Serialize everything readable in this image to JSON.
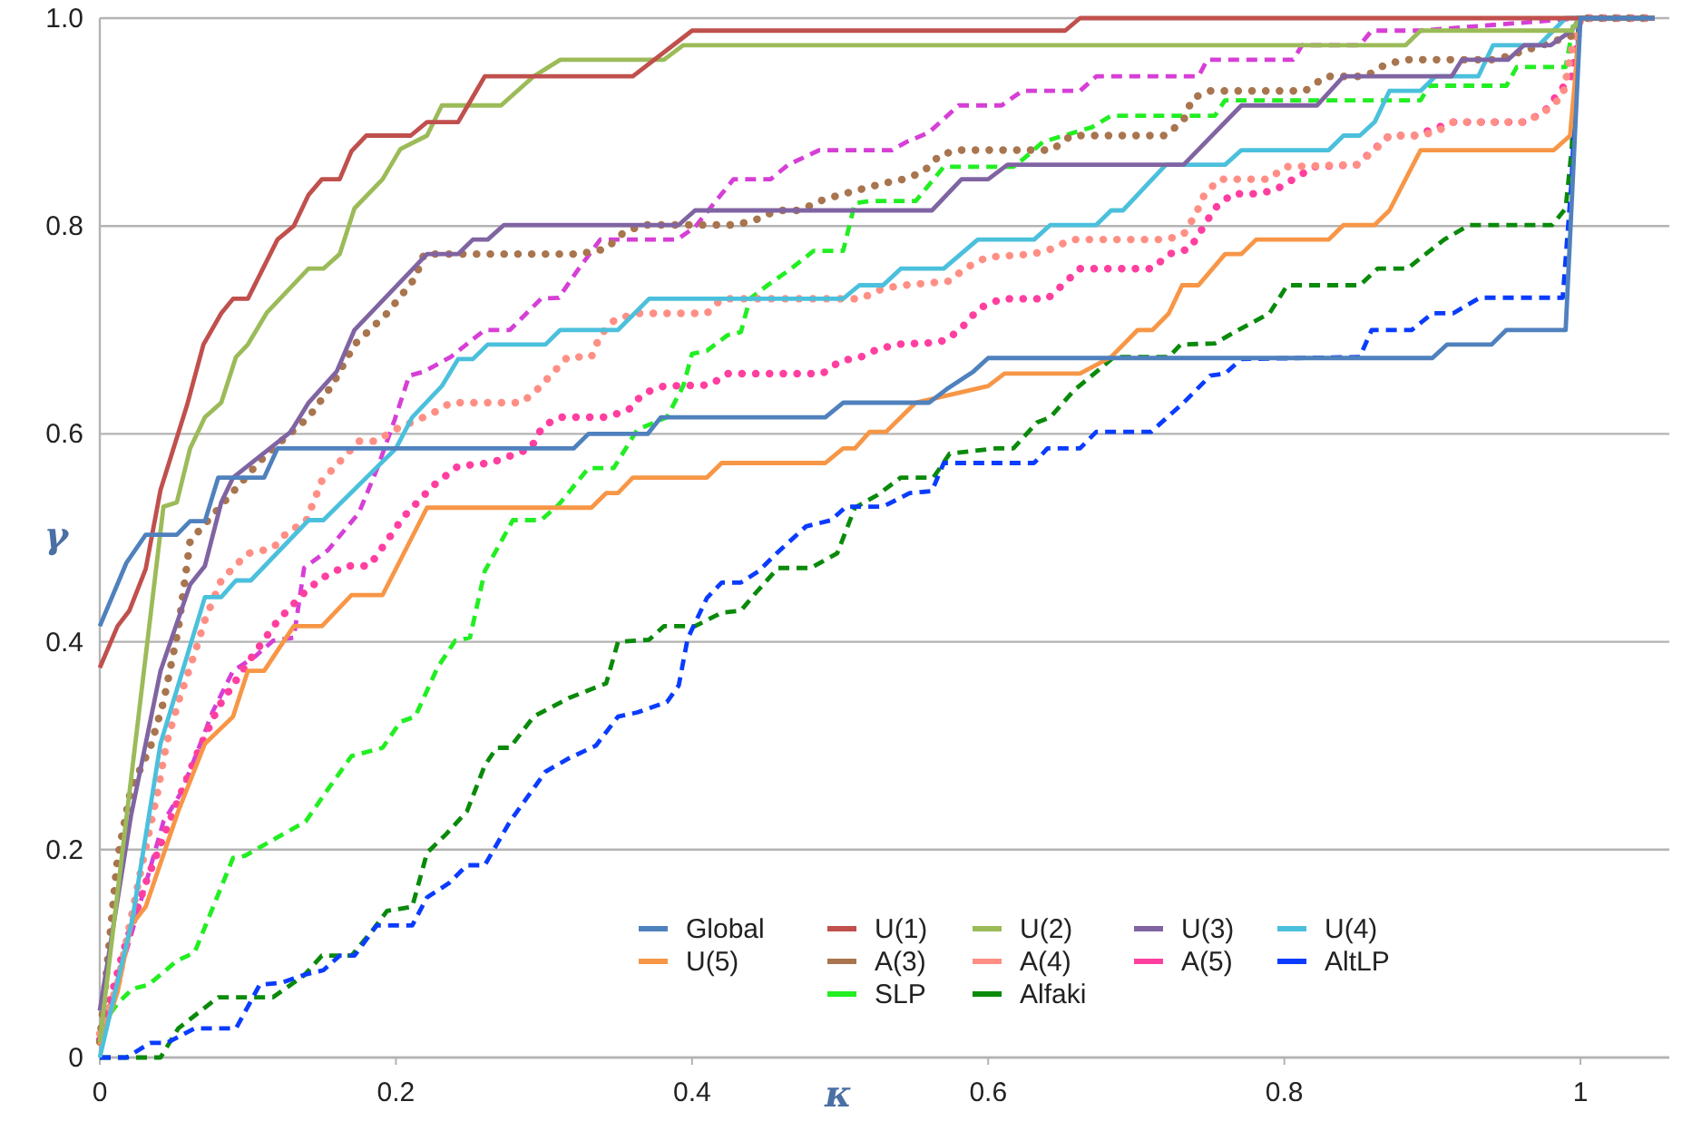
{
  "chart_data": {
    "type": "line",
    "xlabel": "κ",
    "ylabel": "γ",
    "xlim": [
      0,
      1.06
    ],
    "xticks": [
      0,
      0.2,
      0.4,
      0.6,
      0.8,
      1
    ],
    "ylim": [
      0,
      1
    ],
    "yticks": [
      0,
      0.2,
      0.4,
      0.6,
      0.8,
      {
        "value": 1,
        "label": "1.0"
      }
    ],
    "grid": "y",
    "legend": "bottom",
    "marker": "none",
    "series": [
      {
        "name": "Global",
        "color": "#4f81bd",
        "line_style": "solid",
        "x": [
          0,
          0.018,
          0.031,
          0.052,
          0.061,
          0.071,
          0.08,
          0.111,
          0.12,
          0.32,
          0.33,
          0.37,
          0.379,
          0.49,
          0.502,
          0.56,
          0.572,
          0.59,
          0.6,
          0.9,
          0.91,
          0.94,
          0.95,
          0.99,
          1.0,
          1.05
        ],
        "values": [
          0.415,
          0.476,
          0.503,
          0.503,
          0.516,
          0.516,
          0.558,
          0.558,
          0.586,
          0.586,
          0.6,
          0.6,
          0.616,
          0.616,
          0.63,
          0.63,
          0.643,
          0.66,
          0.673,
          0.673,
          0.686,
          0.686,
          0.7,
          0.7,
          1.0,
          1.0
        ]
      },
      {
        "name": "U(1)",
        "color": "#c0504d",
        "line_style": "solid",
        "x": [
          0,
          0.012,
          0.02,
          0.031,
          0.041,
          0.059,
          0.07,
          0.082,
          0.09,
          0.1,
          0.12,
          0.131,
          0.141,
          0.15,
          0.162,
          0.17,
          0.18,
          0.21,
          0.221,
          0.242,
          0.26,
          0.36,
          0.4,
          0.652,
          0.662,
          1.05
        ],
        "values": [
          0.375,
          0.415,
          0.43,
          0.47,
          0.546,
          0.628,
          0.686,
          0.716,
          0.73,
          0.73,
          0.787,
          0.8,
          0.83,
          0.845,
          0.845,
          0.872,
          0.887,
          0.887,
          0.9,
          0.9,
          0.944,
          0.944,
          0.988,
          0.988,
          1.0,
          1.0
        ]
      },
      {
        "name": "U(2)",
        "color": "#9bbb59",
        "line_style": "solid",
        "x": [
          0,
          0.043,
          0.052,
          0.061,
          0.071,
          0.082,
          0.092,
          0.1,
          0.113,
          0.141,
          0.151,
          0.162,
          0.172,
          0.191,
          0.203,
          0.221,
          0.231,
          0.271,
          0.293,
          0.311,
          0.381,
          0.394,
          0.882,
          0.892,
          0.994,
          1.0,
          1.05
        ],
        "values": [
          0.015,
          0.53,
          0.534,
          0.586,
          0.616,
          0.63,
          0.674,
          0.686,
          0.717,
          0.759,
          0.759,
          0.773,
          0.817,
          0.845,
          0.874,
          0.887,
          0.916,
          0.916,
          0.944,
          0.96,
          0.96,
          0.974,
          0.974,
          0.988,
          0.988,
          1.0,
          1.0
        ]
      },
      {
        "name": "U(3)",
        "color": "#8064a2",
        "line_style": "solid",
        "x": [
          0,
          0.021,
          0.041,
          0.061,
          0.071,
          0.082,
          0.09,
          0.129,
          0.141,
          0.16,
          0.172,
          0.221,
          0.242,
          0.252,
          0.262,
          0.273,
          0.391,
          0.402,
          0.562,
          0.582,
          0.6,
          0.613,
          0.732,
          0.771,
          0.822,
          0.84,
          0.913,
          0.92,
          0.951,
          0.962,
          0.98,
          0.994,
          1.0,
          1.05
        ],
        "values": [
          0.045,
          0.232,
          0.372,
          0.455,
          0.473,
          0.534,
          0.558,
          0.602,
          0.63,
          0.66,
          0.7,
          0.773,
          0.773,
          0.787,
          0.787,
          0.801,
          0.801,
          0.815,
          0.815,
          0.845,
          0.845,
          0.859,
          0.859,
          0.916,
          0.916,
          0.944,
          0.944,
          0.96,
          0.96,
          0.974,
          0.974,
          0.988,
          1.0,
          1.0
        ]
      },
      {
        "name": "U(4)",
        "color": "#4bc0dc",
        "line_style": "solid",
        "x": [
          0,
          0.022,
          0.041,
          0.071,
          0.082,
          0.092,
          0.102,
          0.141,
          0.151,
          0.2,
          0.211,
          0.231,
          0.242,
          0.252,
          0.262,
          0.301,
          0.311,
          0.35,
          0.371,
          0.502,
          0.513,
          0.529,
          0.541,
          0.57,
          0.593,
          0.631,
          0.642,
          0.673,
          0.683,
          0.691,
          0.72,
          0.76,
          0.771,
          0.83,
          0.84,
          0.851,
          0.861,
          0.871,
          0.892,
          0.902,
          0.931,
          0.941,
          0.972,
          0.99,
          1.05
        ],
        "values": [
          0,
          0.133,
          0.302,
          0.443,
          0.443,
          0.459,
          0.459,
          0.517,
          0.517,
          0.586,
          0.616,
          0.646,
          0.672,
          0.672,
          0.686,
          0.686,
          0.7,
          0.7,
          0.73,
          0.73,
          0.743,
          0.743,
          0.759,
          0.759,
          0.787,
          0.787,
          0.801,
          0.801,
          0.815,
          0.815,
          0.859,
          0.859,
          0.873,
          0.873,
          0.887,
          0.887,
          0.9,
          0.93,
          0.93,
          0.944,
          0.944,
          0.974,
          0.974,
          1.0,
          1.0
        ]
      },
      {
        "name": "U(5)",
        "color": "#f79646",
        "line_style": "solid",
        "x": [
          0,
          0.012,
          0.021,
          0.031,
          0.053,
          0.071,
          0.09,
          0.1,
          0.111,
          0.131,
          0.15,
          0.17,
          0.191,
          0.221,
          0.332,
          0.342,
          0.35,
          0.36,
          0.41,
          0.42,
          0.49,
          0.502,
          0.51,
          0.52,
          0.531,
          0.551,
          0.6,
          0.611,
          0.662,
          0.683,
          0.701,
          0.711,
          0.722,
          0.731,
          0.742,
          0.76,
          0.771,
          0.781,
          0.83,
          0.84,
          0.861,
          0.871,
          0.892,
          0.982,
          0.993,
          1.0,
          1.05
        ],
        "values": [
          0.012,
          0.063,
          0.127,
          0.145,
          0.237,
          0.302,
          0.328,
          0.372,
          0.372,
          0.415,
          0.415,
          0.445,
          0.445,
          0.529,
          0.529,
          0.543,
          0.543,
          0.558,
          0.558,
          0.572,
          0.572,
          0.586,
          0.586,
          0.602,
          0.602,
          0.63,
          0.646,
          0.658,
          0.658,
          0.674,
          0.7,
          0.7,
          0.716,
          0.743,
          0.743,
          0.773,
          0.773,
          0.787,
          0.787,
          0.801,
          0.801,
          0.815,
          0.873,
          0.873,
          0.887,
          1.0,
          1.0
        ]
      },
      {
        "name": "A(3)",
        "color": "#a8754f",
        "line_style": "dotted",
        "x": [
          0,
          0.009,
          0.012,
          0.021,
          0.034,
          0.043,
          0.053,
          0.061,
          0.107,
          0.117,
          0.141,
          0.157,
          0.172,
          0.194,
          0.213,
          0.219,
          0.323,
          0.342,
          0.354,
          0.367,
          0.43,
          0.445,
          0.457,
          0.473,
          0.486,
          0.5,
          0.529,
          0.543,
          0.556,
          0.568,
          0.582,
          0.643,
          0.656,
          0.72,
          0.732,
          0.738,
          0.75,
          0.814,
          0.828,
          0.855,
          0.869,
          0.883,
          0.943,
          0.994,
          1.0,
          1.05
        ],
        "values": [
          0.015,
          0.148,
          0.192,
          0.258,
          0.298,
          0.342,
          0.412,
          0.497,
          0.572,
          0.586,
          0.616,
          0.647,
          0.686,
          0.716,
          0.75,
          0.773,
          0.773,
          0.778,
          0.794,
          0.801,
          0.801,
          0.807,
          0.815,
          0.815,
          0.824,
          0.83,
          0.841,
          0.845,
          0.852,
          0.869,
          0.873,
          0.873,
          0.887,
          0.887,
          0.902,
          0.923,
          0.93,
          0.93,
          0.944,
          0.944,
          0.956,
          0.96,
          0.96,
          0.983,
          1.0,
          1.0
        ]
      },
      {
        "name": "A(4)",
        "color": "#ff8f85",
        "line_style": "dotted",
        "x": [
          0,
          0.012,
          0.027,
          0.039,
          0.045,
          0.053,
          0.065,
          0.071,
          0.082,
          0.09,
          0.1,
          0.117,
          0.127,
          0.139,
          0.15,
          0.175,
          0.187,
          0.199,
          0.225,
          0.237,
          0.285,
          0.295,
          0.316,
          0.332,
          0.338,
          0.348,
          0.363,
          0.41,
          0.42,
          0.514,
          0.529,
          0.543,
          0.574,
          0.584,
          0.599,
          0.63,
          0.643,
          0.656,
          0.72,
          0.732,
          0.74,
          0.746,
          0.756,
          0.79,
          0.8,
          0.849,
          0.861,
          0.871,
          0.888,
          0.902,
          0.914,
          0.962,
          0.975,
          0.988,
          0.994,
          1.0,
          1.05
        ],
        "values": [
          0.023,
          0.07,
          0.175,
          0.255,
          0.302,
          0.342,
          0.393,
          0.421,
          0.459,
          0.471,
          0.485,
          0.49,
          0.506,
          0.515,
          0.555,
          0.593,
          0.593,
          0.604,
          0.62,
          0.63,
          0.63,
          0.642,
          0.674,
          0.674,
          0.695,
          0.71,
          0.716,
          0.716,
          0.73,
          0.73,
          0.74,
          0.743,
          0.747,
          0.759,
          0.77,
          0.773,
          0.778,
          0.787,
          0.787,
          0.792,
          0.811,
          0.83,
          0.845,
          0.845,
          0.857,
          0.859,
          0.873,
          0.887,
          0.887,
          0.89,
          0.9,
          0.9,
          0.909,
          0.925,
          0.969,
          1.0,
          1.0
        ]
      },
      {
        "name": "A(5)",
        "color": "#ff3fa0",
        "line_style": "dotted",
        "x": [
          0,
          0.015,
          0.031,
          0.047,
          0.065,
          0.08,
          0.1,
          0.12,
          0.14,
          0.151,
          0.166,
          0.182,
          0.194,
          0.205,
          0.225,
          0.242,
          0.264,
          0.291,
          0.299,
          0.31,
          0.342,
          0.357,
          0.367,
          0.381,
          0.412,
          0.424,
          0.488,
          0.5,
          0.514,
          0.526,
          0.543,
          0.557,
          0.572,
          0.584,
          0.594,
          0.609,
          0.64,
          0.65,
          0.662,
          0.695,
          0.711,
          0.722,
          0.736,
          0.744,
          0.753,
          0.765,
          0.779,
          0.793,
          0.806,
          0.82,
          0.849,
          0.871,
          0.888,
          0.914,
          0.962,
          0.975,
          0.994,
          1.0,
          1.05
        ],
        "values": [
          0.017,
          0.098,
          0.168,
          0.227,
          0.29,
          0.337,
          0.38,
          0.42,
          0.45,
          0.462,
          0.473,
          0.473,
          0.497,
          0.52,
          0.55,
          0.569,
          0.572,
          0.586,
          0.607,
          0.616,
          0.616,
          0.623,
          0.639,
          0.646,
          0.647,
          0.658,
          0.658,
          0.67,
          0.674,
          0.682,
          0.687,
          0.687,
          0.69,
          0.705,
          0.721,
          0.73,
          0.73,
          0.743,
          0.759,
          0.759,
          0.759,
          0.773,
          0.778,
          0.796,
          0.817,
          0.831,
          0.831,
          0.834,
          0.845,
          0.857,
          0.859,
          0.887,
          0.887,
          0.9,
          0.9,
          0.909,
          0.944,
          1.0,
          1.0
        ]
      },
      {
        "name": "AltLP",
        "color": "#0a3cff",
        "line_style": "dashed",
        "x": [
          0,
          0.018,
          0.034,
          0.045,
          0.064,
          0.092,
          0.108,
          0.123,
          0.139,
          0.151,
          0.162,
          0.172,
          0.187,
          0.211,
          0.221,
          0.236,
          0.248,
          0.26,
          0.277,
          0.301,
          0.317,
          0.335,
          0.35,
          0.363,
          0.383,
          0.391,
          0.397,
          0.41,
          0.42,
          0.433,
          0.445,
          0.457,
          0.477,
          0.494,
          0.504,
          0.529,
          0.547,
          0.562,
          0.57,
          0.631,
          0.64,
          0.662,
          0.673,
          0.71,
          0.732,
          0.75,
          0.76,
          0.771,
          0.851,
          0.859,
          0.886,
          0.9,
          0.914,
          0.932,
          0.988,
          0.994,
          0.999,
          1.05
        ],
        "values": [
          0,
          0,
          0.014,
          0.014,
          0.028,
          0.028,
          0.07,
          0.072,
          0.08,
          0.084,
          0.098,
          0.098,
          0.127,
          0.127,
          0.154,
          0.168,
          0.185,
          0.185,
          0.227,
          0.275,
          0.288,
          0.3,
          0.328,
          0.332,
          0.342,
          0.358,
          0.403,
          0.442,
          0.457,
          0.457,
          0.468,
          0.485,
          0.511,
          0.517,
          0.53,
          0.53,
          0.543,
          0.545,
          0.572,
          0.572,
          0.586,
          0.586,
          0.602,
          0.602,
          0.63,
          0.656,
          0.658,
          0.672,
          0.674,
          0.7,
          0.7,
          0.716,
          0.716,
          0.731,
          0.731,
          0.843,
          1.0,
          1.0
        ]
      },
      {
        "color": "#d63fd6",
        "line_style": "dashed",
        "x": [
          0,
          0.022,
          0.043,
          0.055,
          0.068,
          0.076,
          0.09,
          0.105,
          0.117,
          0.131,
          0.138,
          0.154,
          0.175,
          0.188,
          0.199,
          0.209,
          0.219,
          0.237,
          0.26,
          0.277,
          0.298,
          0.31,
          0.322,
          0.338,
          0.39,
          0.402,
          0.42,
          0.428,
          0.453,
          0.465,
          0.486,
          0.535,
          0.545,
          0.56,
          0.58,
          0.609,
          0.623,
          0.662,
          0.673,
          0.742,
          0.748,
          0.806,
          0.812,
          0.851,
          0.859,
          0.892,
          1.0,
          1.05
        ],
        "values": [
          0.017,
          0.122,
          0.227,
          0.255,
          0.302,
          0.332,
          0.372,
          0.386,
          0.401,
          0.404,
          0.471,
          0.488,
          0.524,
          0.569,
          0.613,
          0.656,
          0.66,
          0.674,
          0.7,
          0.7,
          0.73,
          0.731,
          0.756,
          0.787,
          0.787,
          0.799,
          0.831,
          0.845,
          0.845,
          0.859,
          0.873,
          0.873,
          0.881,
          0.89,
          0.916,
          0.916,
          0.93,
          0.93,
          0.944,
          0.944,
          0.96,
          0.96,
          0.974,
          0.974,
          0.988,
          0.988,
          1.0,
          1.0
        ]
      },
      {
        "name": "SLP",
        "color": "#22ee22",
        "line_style": "dashed",
        "x": [
          0,
          0.012,
          0.022,
          0.033,
          0.052,
          0.064,
          0.09,
          0.098,
          0.119,
          0.139,
          0.154,
          0.17,
          0.191,
          0.203,
          0.213,
          0.228,
          0.24,
          0.25,
          0.26,
          0.279,
          0.298,
          0.31,
          0.33,
          0.347,
          0.363,
          0.383,
          0.394,
          0.4,
          0.41,
          0.424,
          0.433,
          0.439,
          0.451,
          0.467,
          0.482,
          0.502,
          0.51,
          0.52,
          0.551,
          0.57,
          0.617,
          0.625,
          0.637,
          0.67,
          0.683,
          0.753,
          0.76,
          0.892,
          0.898,
          0.95,
          0.957,
          0.99,
          0.996,
          1.05
        ],
        "values": [
          0.028,
          0.052,
          0.066,
          0.07,
          0.093,
          0.101,
          0.192,
          0.194,
          0.211,
          0.227,
          0.258,
          0.29,
          0.298,
          0.323,
          0.328,
          0.375,
          0.401,
          0.404,
          0.468,
          0.517,
          0.517,
          0.532,
          0.567,
          0.567,
          0.604,
          0.616,
          0.646,
          0.677,
          0.68,
          0.695,
          0.698,
          0.73,
          0.743,
          0.759,
          0.776,
          0.776,
          0.822,
          0.824,
          0.824,
          0.857,
          0.857,
          0.866,
          0.881,
          0.895,
          0.906,
          0.906,
          0.921,
          0.921,
          0.935,
          0.935,
          0.953,
          0.953,
          1.0,
          1.0
        ]
      },
      {
        "name": "Alfaki",
        "color": "#0a8a0a",
        "line_style": "dashed",
        "x": [
          0,
          0.041,
          0.053,
          0.08,
          0.117,
          0.138,
          0.15,
          0.17,
          0.184,
          0.194,
          0.211,
          0.221,
          0.234,
          0.248,
          0.26,
          0.268,
          0.277,
          0.293,
          0.317,
          0.342,
          0.35,
          0.371,
          0.381,
          0.402,
          0.42,
          0.433,
          0.443,
          0.458,
          0.48,
          0.498,
          0.51,
          0.525,
          0.541,
          0.563,
          0.574,
          0.605,
          0.617,
          0.633,
          0.642,
          0.658,
          0.67,
          0.685,
          0.722,
          0.73,
          0.753,
          0.769,
          0.79,
          0.802,
          0.851,
          0.863,
          0.883,
          0.908,
          0.925,
          0.981,
          0.99,
          0.994,
          0.999,
          1.05
        ],
        "values": [
          0,
          0,
          0.028,
          0.058,
          0.058,
          0.079,
          0.098,
          0.098,
          0.122,
          0.141,
          0.145,
          0.197,
          0.215,
          0.237,
          0.281,
          0.298,
          0.298,
          0.328,
          0.346,
          0.36,
          0.4,
          0.402,
          0.415,
          0.415,
          0.428,
          0.43,
          0.447,
          0.471,
          0.471,
          0.485,
          0.529,
          0.541,
          0.558,
          0.558,
          0.581,
          0.586,
          0.586,
          0.611,
          0.616,
          0.642,
          0.656,
          0.674,
          0.674,
          0.686,
          0.687,
          0.7,
          0.716,
          0.743,
          0.743,
          0.759,
          0.759,
          0.787,
          0.801,
          0.801,
          0.817,
          0.873,
          1.0,
          1.0
        ]
      }
    ]
  }
}
